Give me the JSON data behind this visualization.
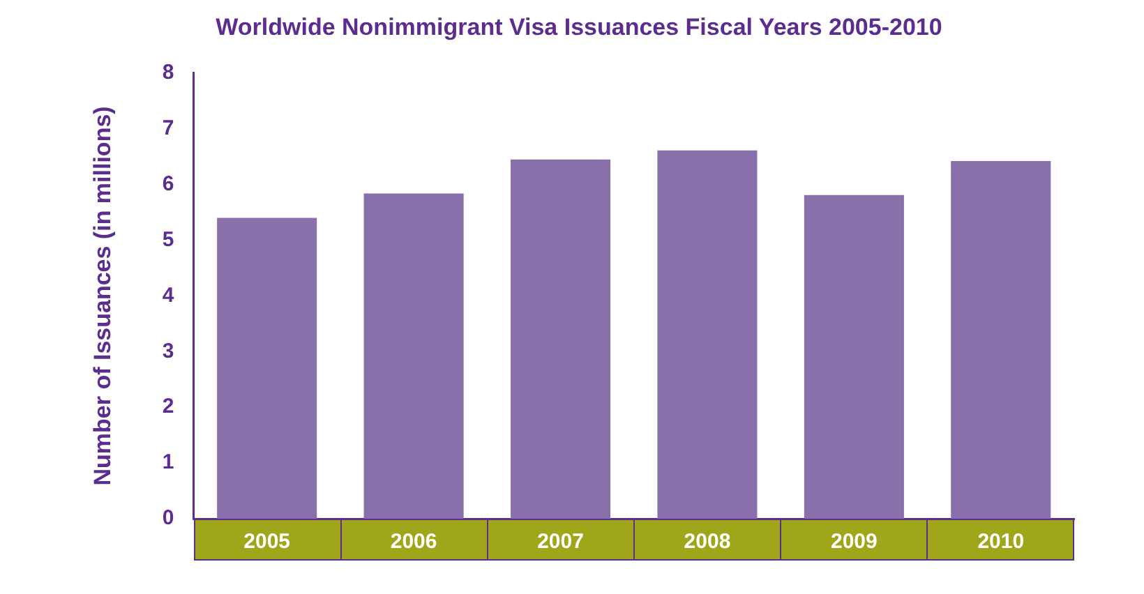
{
  "chart_data": {
    "type": "bar",
    "title": "Worldwide Nonimmigrant Visa Issuances Fiscal Years 2005-2010",
    "ylabel": "Number of Issuances (in millions)",
    "categories": [
      "2005",
      "2006",
      "2007",
      "2008",
      "2009",
      "2010"
    ],
    "values": [
      5.4,
      5.84,
      6.45,
      6.61,
      5.81,
      6.42
    ],
    "color": "#8a70aa",
    "ylim": [
      0,
      8
    ],
    "yticks": [
      0,
      1,
      2,
      3,
      4,
      5,
      6,
      7,
      8
    ],
    "grid": false,
    "legend": false
  }
}
